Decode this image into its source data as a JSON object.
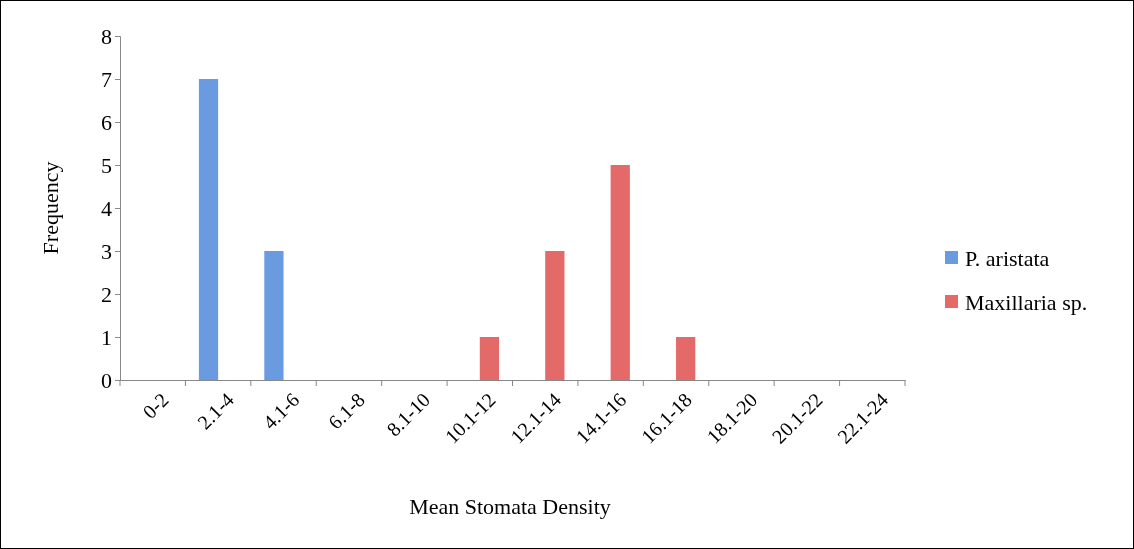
{
  "chart_data": {
    "type": "bar",
    "xlabel": "Mean Stomata Density",
    "ylabel": "Frequency",
    "categories": [
      "0-2",
      "2.1-4",
      "4.1-6",
      "6.1-8",
      "8.1-10",
      "10.1-12",
      "12.1-14",
      "14.1-16",
      "16.1-18",
      "18.1-20",
      "20.1-22",
      "22.1-24"
    ],
    "series": [
      {
        "name": "P. aristata",
        "color": "#6a9be0",
        "values": [
          0,
          7,
          3,
          0,
          0,
          0,
          0,
          0,
          0,
          0,
          0,
          0
        ]
      },
      {
        "name": "Maxillaria sp.",
        "color": "#e46a6a",
        "values": [
          0,
          0,
          0,
          0,
          0,
          1,
          3,
          5,
          1,
          0,
          0,
          0
        ]
      }
    ],
    "ylim": [
      0,
      8
    ],
    "yticks": [
      0,
      1,
      2,
      3,
      4,
      5,
      6,
      7,
      8
    ],
    "grid": false,
    "legend": "right"
  }
}
